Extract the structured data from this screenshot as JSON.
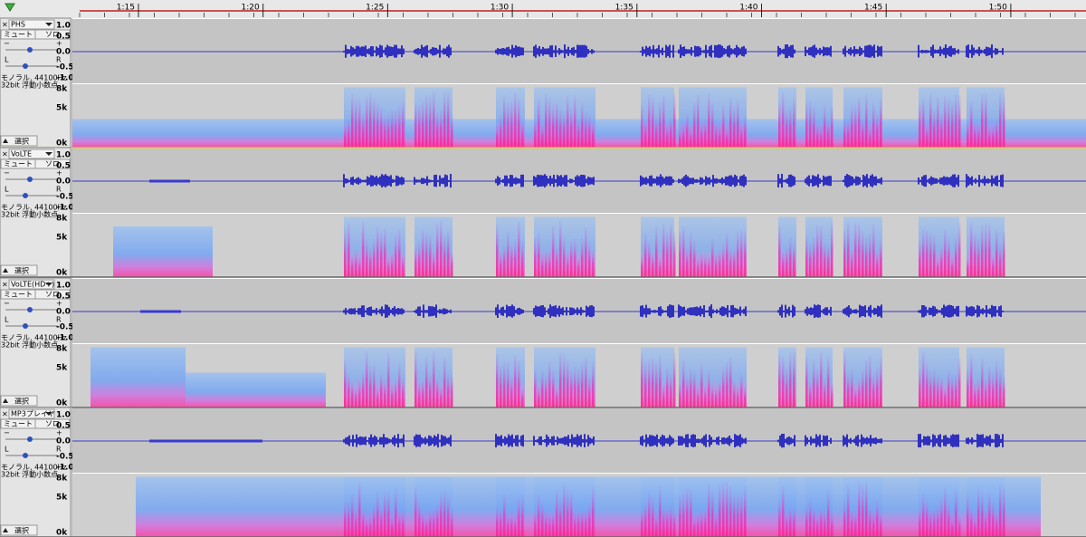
{
  "ruler": {
    "labels": [
      "1:15",
      "1:20",
      "1:25",
      "1:30",
      "1:35",
      "1:40",
      "1:45",
      "1:50"
    ]
  },
  "tracks": [
    {
      "name": "PHS",
      "mute": "ミュート",
      "solo": "ソロ",
      "gain_minus": "−",
      "gain_plus": "+",
      "pan_left": "L",
      "pan_right": "R",
      "format": "モノラル, 44100Hz",
      "bit_depth": "32bit 浮動小数点",
      "select": "選択",
      "wave_ticks": [
        "1.0",
        "0.5",
        "0.0",
        "-0.5",
        "-1.0"
      ],
      "spec_ticks": [
        "8k",
        "5k",
        "0k"
      ]
    },
    {
      "name": "VoLTE",
      "mute": "ミュート",
      "solo": "ソロ",
      "gain_minus": "−",
      "gain_plus": "+",
      "pan_left": "L",
      "pan_right": "R",
      "format": "モノラル, 44100Hz",
      "bit_depth": "32bit 浮動小数点",
      "select": "選択",
      "wave_ticks": [
        "1.0",
        "0.5",
        "0.0",
        "-0.5",
        "-1.0"
      ],
      "spec_ticks": [
        "8k",
        "5k",
        "0k"
      ]
    },
    {
      "name": "VoLTE(HD+)",
      "mute": "ミュート",
      "solo": "ソロ",
      "gain_minus": "−",
      "gain_plus": "+",
      "pan_left": "L",
      "pan_right": "R",
      "format": "モノラル, 44100Hz",
      "bit_depth": "32bit 浮動小数点",
      "select": "選択",
      "wave_ticks": [
        "1.0",
        "0.5",
        "0.0",
        "-0.5",
        "-1.0"
      ],
      "spec_ticks": [
        "8k",
        "5k",
        "0k"
      ]
    },
    {
      "name": "MP3プレイヤ",
      "mute": "ミュート",
      "solo": "ソロ",
      "gain_minus": "−",
      "gain_plus": "+",
      "pan_left": "L",
      "pan_right": "R",
      "format": "モノラル, 44100Hz",
      "bit_depth": "32bit 浮動小数点",
      "select": "選択",
      "wave_ticks": [
        "1.0",
        "0.5",
        "0.0",
        "-0.5",
        "-1.0"
      ],
      "spec_ticks": [
        "8k",
        "5k",
        "0k"
      ]
    }
  ]
}
